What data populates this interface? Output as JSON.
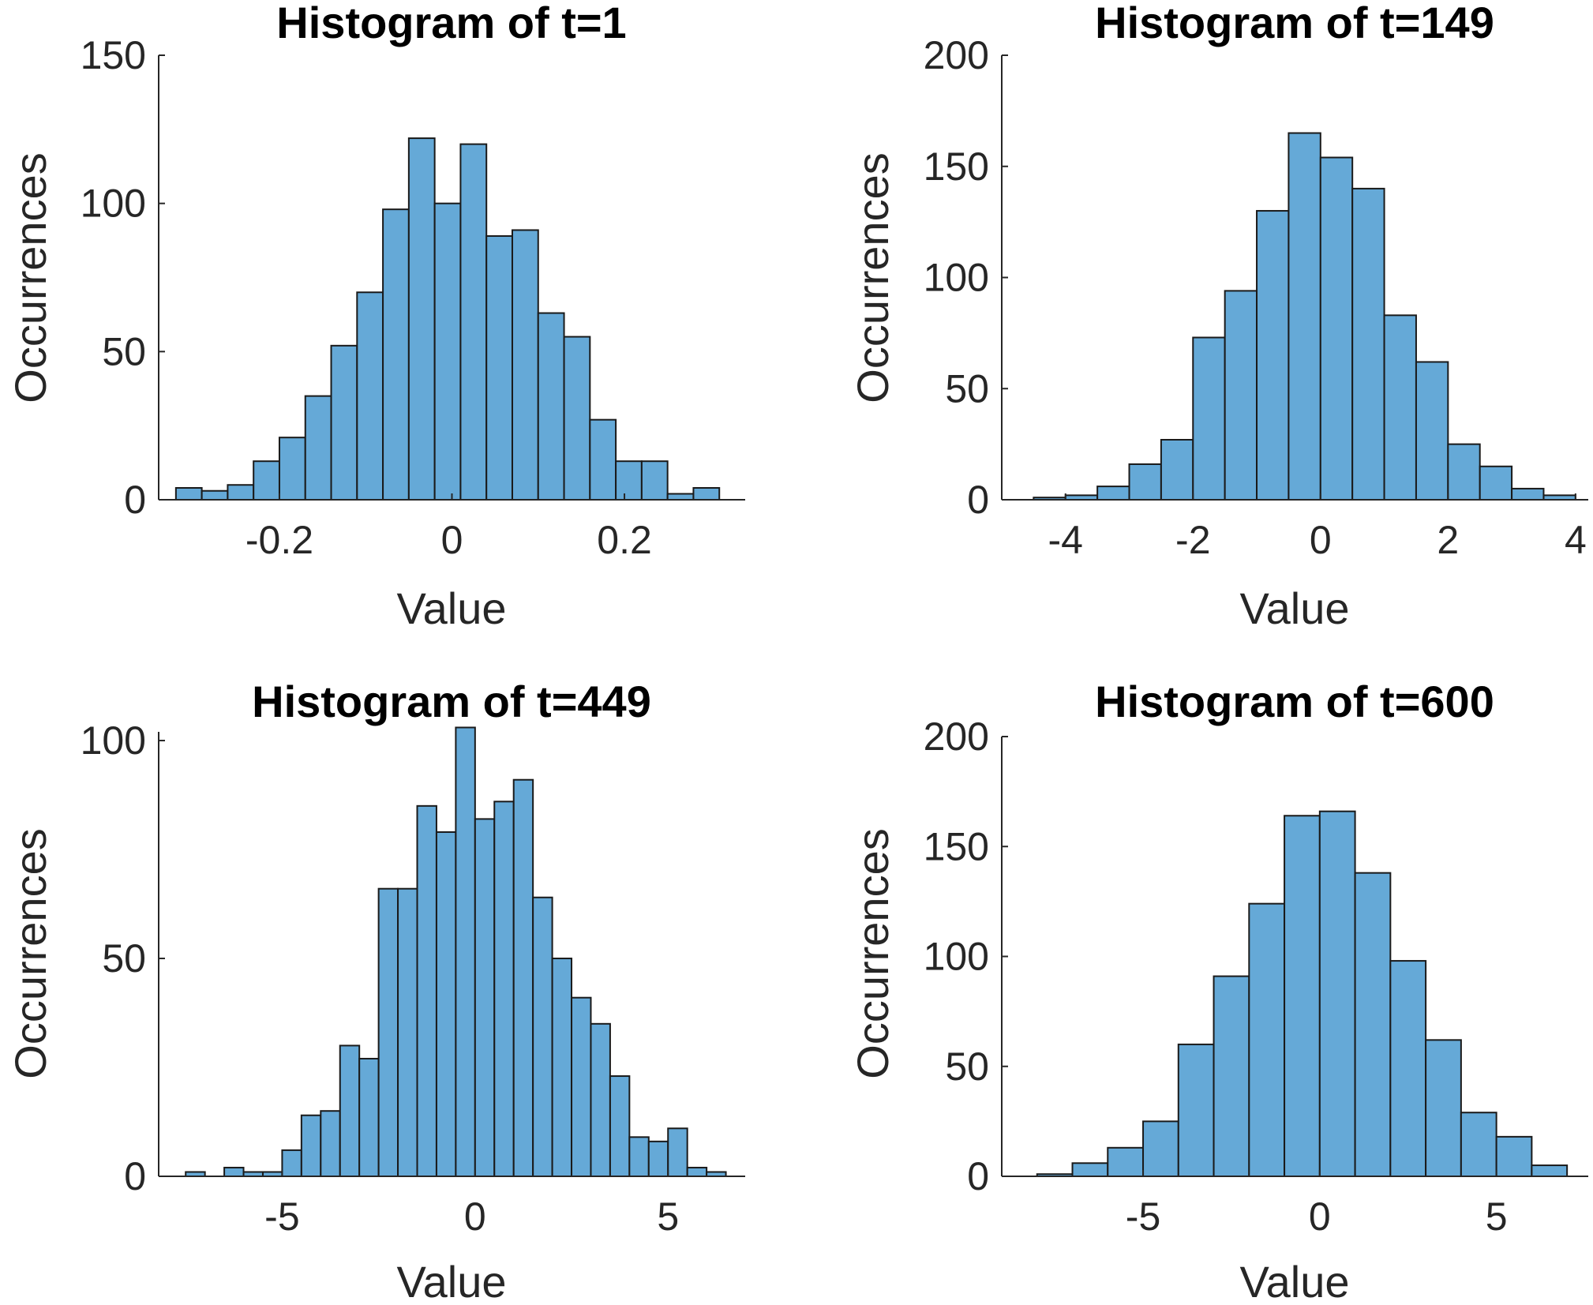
{
  "colors": {
    "bar_fill": "#65a9d7",
    "bar_edge": "#1a1a1a",
    "axis": "#262626",
    "title": "#000000"
  },
  "chart_data": [
    {
      "type": "bar",
      "title": "Histogram of t=1",
      "xlabel": "Value",
      "ylabel": "Occurrences",
      "xlim": [
        -0.34,
        0.34
      ],
      "ylim": [
        0,
        150
      ],
      "xticks": [
        -0.2,
        0,
        0.2
      ],
      "xtick_labels": [
        "-0.2",
        "0",
        "0.2"
      ],
      "yticks": [
        0,
        50,
        100,
        150
      ],
      "ytick_labels": [
        "0",
        "50",
        "100",
        "150"
      ],
      "bin_edges": [
        -0.32,
        -0.29,
        -0.26,
        -0.23,
        -0.2,
        -0.17,
        -0.14,
        -0.11,
        -0.08,
        -0.05,
        -0.02,
        0.01,
        0.04,
        0.07,
        0.1,
        0.13,
        0.16,
        0.19,
        0.22,
        0.25,
        0.28,
        0.31
      ],
      "values": [
        4,
        3,
        5,
        13,
        21,
        35,
        52,
        70,
        98,
        122,
        100,
        120,
        89,
        91,
        63,
        55,
        27,
        13,
        13,
        2,
        4
      ]
    },
    {
      "type": "bar",
      "title": "Histogram of t=149",
      "xlabel": "Value",
      "ylabel": "Occurrences",
      "xlim": [
        -5,
        4.2
      ],
      "ylim": [
        0,
        200
      ],
      "xticks": [
        -4,
        -2,
        0,
        2,
        4
      ],
      "xtick_labels": [
        "-4",
        "-2",
        "0",
        "2",
        "4"
      ],
      "yticks": [
        0,
        50,
        100,
        150,
        200
      ],
      "ytick_labels": [
        "0",
        "50",
        "100",
        "150",
        "200"
      ],
      "bin_edges": [
        -4.5,
        -4,
        -3.5,
        -3,
        -2.5,
        -2,
        -1.5,
        -1,
        -0.5,
        0,
        0.5,
        1,
        1.5,
        2,
        2.5,
        3,
        3.5,
        4
      ],
      "values": [
        1,
        2,
        6,
        16,
        27,
        73,
        94,
        130,
        165,
        154,
        140,
        83,
        62,
        25,
        15,
        5,
        2
      ]
    },
    {
      "type": "bar",
      "title": "Histogram of t=449",
      "xlabel": "Value",
      "ylabel": "Occurrences",
      "xlim": [
        -8.2,
        7
      ],
      "ylim": [
        0,
        102
      ],
      "xticks": [
        -5,
        0,
        5
      ],
      "xtick_labels": [
        "-5",
        "0",
        "5"
      ],
      "yticks": [
        0,
        50,
        100
      ],
      "ytick_labels": [
        "0",
        "50",
        "100"
      ],
      "bin_edges": [
        -7.5,
        -7,
        -6.5,
        -6,
        -5.5,
        -5,
        -4.5,
        -4,
        -3.5,
        -3,
        -2.5,
        -2,
        -1.5,
        -1,
        -0.5,
        0,
        0.5,
        1,
        1.5,
        2,
        2.5,
        3,
        3.5,
        4,
        4.5,
        5,
        5.5,
        6,
        6.5
      ],
      "values": [
        1,
        0,
        2,
        1,
        1,
        6,
        14,
        15,
        30,
        27,
        66,
        66,
        85,
        79,
        103,
        82,
        86,
        91,
        64,
        50,
        41,
        35,
        23,
        9,
        8,
        11,
        2,
        1
      ]
    },
    {
      "type": "bar",
      "title": "Histogram of t=600",
      "xlabel": "Value",
      "ylabel": "Occurrences",
      "xlim": [
        -9,
        7.6
      ],
      "ylim": [
        0,
        200
      ],
      "xticks": [
        -5,
        0,
        5
      ],
      "xtick_labels": [
        "-5",
        "0",
        "5"
      ],
      "yticks": [
        0,
        50,
        100,
        150,
        200
      ],
      "ytick_labels": [
        "0",
        "50",
        "100",
        "150",
        "200"
      ],
      "bin_edges": [
        -8,
        -7,
        -6,
        -5,
        -4,
        -3,
        -2,
        -1,
        0,
        1,
        2,
        3,
        4,
        5,
        6,
        7
      ],
      "values": [
        1,
        6,
        13,
        25,
        60,
        91,
        124,
        164,
        166,
        138,
        98,
        62,
        29,
        18,
        5
      ]
    }
  ]
}
